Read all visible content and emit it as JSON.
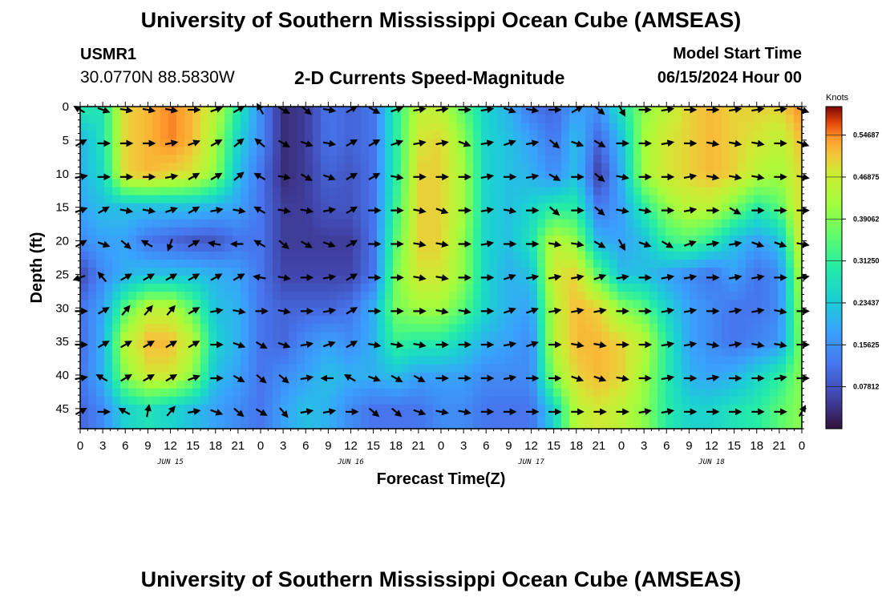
{
  "header": {
    "title": "University of Southern Mississippi Ocean Cube (AMSEAS)",
    "station_id": "USMR1",
    "station_coords": "30.0770N  88.5830W",
    "subtitle": "2-D Currents Speed-Magnitude",
    "start_label": "Model Start Time",
    "start_value": "06/15/2024 Hour 00"
  },
  "footer": {
    "title": "University of Southern Mississippi Ocean Cube (AMSEAS)"
  },
  "chart_data": {
    "type": "heatmap",
    "title": "2-D Currents Speed-Magnitude",
    "xlabel": "Forecast Time(Z)",
    "ylabel": "Depth (ft)",
    "x_hours_range": [
      0,
      96
    ],
    "x_tick_labels": [
      "0",
      "3",
      "6",
      "9",
      "12",
      "15",
      "18",
      "21",
      "0",
      "3",
      "6",
      "9",
      "12",
      "15",
      "18",
      "21",
      "0",
      "3",
      "6",
      "9",
      "12",
      "15",
      "18",
      "21",
      "0",
      "3",
      "6",
      "9",
      "12",
      "15",
      "18",
      "21",
      "0"
    ],
    "date_labels": [
      {
        "label": "JUN 15",
        "hour": 12
      },
      {
        "label": "JUN 16",
        "hour": 36
      },
      {
        "label": "JUN 17",
        "hour": 60
      },
      {
        "label": "JUN 18",
        "hour": 84
      }
    ],
    "y_ticks": [
      0,
      5,
      10,
      15,
      20,
      25,
      30,
      35,
      40,
      45
    ],
    "y_range": [
      0,
      48
    ],
    "colorbar": {
      "unit": "Knots",
      "range": [
        0,
        0.6
      ],
      "tick_values": [
        0.07812,
        0.15625,
        0.23437,
        0.3125,
        0.39062,
        0.46875,
        0.54687
      ],
      "tick_labels": [
        "0.07812",
        "0.15625",
        "0.23437",
        "0.31250",
        "0.39062",
        "0.46875",
        "0.54687"
      ]
    },
    "arrow_hours": [
      0,
      3,
      6,
      9,
      12,
      15,
      18,
      21,
      24,
      27,
      30,
      33,
      36,
      39,
      42,
      45,
      48,
      51,
      54,
      57,
      60,
      63,
      66,
      69,
      72,
      75,
      78,
      81,
      84,
      87,
      90,
      93,
      96
    ],
    "arrow_depths": [
      0,
      5,
      10,
      15,
      20,
      25,
      30,
      35,
      40,
      45
    ],
    "speed_knots": [
      [
        0.3,
        0.28,
        0.5,
        0.52,
        0.55,
        0.52,
        0.45,
        0.3,
        0.15,
        0.03,
        0.05,
        0.12,
        0.1,
        0.12,
        0.3,
        0.45,
        0.45,
        0.35,
        0.25,
        0.2,
        0.12,
        0.1,
        0.18,
        0.16,
        0.28,
        0.4,
        0.45,
        0.5,
        0.52,
        0.5,
        0.5,
        0.5,
        0.55
      ],
      [
        0.2,
        0.28,
        0.5,
        0.52,
        0.55,
        0.52,
        0.42,
        0.25,
        0.15,
        0.03,
        0.05,
        0.12,
        0.1,
        0.12,
        0.3,
        0.48,
        0.5,
        0.4,
        0.25,
        0.22,
        0.18,
        0.12,
        0.22,
        0.1,
        0.22,
        0.42,
        0.48,
        0.5,
        0.52,
        0.5,
        0.48,
        0.45,
        0.52
      ],
      [
        0.2,
        0.26,
        0.5,
        0.52,
        0.5,
        0.48,
        0.4,
        0.22,
        0.12,
        0.03,
        0.05,
        0.1,
        0.08,
        0.12,
        0.3,
        0.5,
        0.5,
        0.42,
        0.25,
        0.22,
        0.2,
        0.15,
        0.22,
        0.05,
        0.2,
        0.42,
        0.48,
        0.5,
        0.52,
        0.5,
        0.45,
        0.42,
        0.5
      ],
      [
        0.18,
        0.22,
        0.22,
        0.22,
        0.22,
        0.22,
        0.2,
        0.18,
        0.12,
        0.05,
        0.05,
        0.08,
        0.08,
        0.12,
        0.32,
        0.5,
        0.5,
        0.42,
        0.25,
        0.22,
        0.25,
        0.3,
        0.3,
        0.12,
        0.18,
        0.3,
        0.4,
        0.45,
        0.45,
        0.38,
        0.3,
        0.35,
        0.5
      ],
      [
        0.15,
        0.18,
        0.18,
        0.12,
        0.1,
        0.08,
        0.08,
        0.12,
        0.12,
        0.05,
        0.05,
        0.05,
        0.05,
        0.12,
        0.35,
        0.5,
        0.5,
        0.4,
        0.25,
        0.22,
        0.28,
        0.45,
        0.4,
        0.2,
        0.18,
        0.22,
        0.32,
        0.35,
        0.3,
        0.22,
        0.18,
        0.22,
        0.5
      ],
      [
        0.06,
        0.15,
        0.2,
        0.22,
        0.22,
        0.22,
        0.2,
        0.18,
        0.12,
        0.06,
        0.06,
        0.06,
        0.06,
        0.12,
        0.38,
        0.48,
        0.48,
        0.4,
        0.25,
        0.2,
        0.22,
        0.48,
        0.5,
        0.35,
        0.22,
        0.22,
        0.18,
        0.15,
        0.12,
        0.18,
        0.12,
        0.15,
        0.45
      ],
      [
        0.12,
        0.18,
        0.35,
        0.45,
        0.45,
        0.35,
        0.22,
        0.2,
        0.12,
        0.1,
        0.1,
        0.1,
        0.12,
        0.2,
        0.38,
        0.42,
        0.42,
        0.35,
        0.25,
        0.2,
        0.18,
        0.45,
        0.52,
        0.5,
        0.4,
        0.35,
        0.25,
        0.18,
        0.15,
        0.12,
        0.12,
        0.15,
        0.42
      ],
      [
        0.1,
        0.2,
        0.45,
        0.52,
        0.52,
        0.45,
        0.25,
        0.2,
        0.12,
        0.1,
        0.15,
        0.18,
        0.15,
        0.2,
        0.32,
        0.3,
        0.3,
        0.25,
        0.2,
        0.18,
        0.15,
        0.45,
        0.52,
        0.52,
        0.5,
        0.45,
        0.3,
        0.18,
        0.15,
        0.12,
        0.14,
        0.16,
        0.4
      ],
      [
        0.12,
        0.2,
        0.4,
        0.48,
        0.48,
        0.4,
        0.22,
        0.18,
        0.12,
        0.15,
        0.18,
        0.22,
        0.2,
        0.2,
        0.22,
        0.18,
        0.18,
        0.18,
        0.15,
        0.15,
        0.15,
        0.4,
        0.5,
        0.52,
        0.5,
        0.42,
        0.3,
        0.2,
        0.18,
        0.2,
        0.25,
        0.3,
        0.4
      ],
      [
        0.1,
        0.15,
        0.25,
        0.28,
        0.25,
        0.22,
        0.18,
        0.15,
        0.12,
        0.18,
        0.22,
        0.2,
        0.15,
        0.12,
        0.12,
        0.12,
        0.15,
        0.15,
        0.12,
        0.12,
        0.12,
        0.25,
        0.45,
        0.48,
        0.45,
        0.4,
        0.3,
        0.25,
        0.25,
        0.28,
        0.3,
        0.35,
        0.4
      ]
    ],
    "direction_deg": [
      [
        300,
        110,
        100,
        100,
        100,
        90,
        70,
        60,
        330,
        120,
        130,
        100,
        60,
        120,
        70,
        80,
        80,
        90,
        80,
        110,
        100,
        90,
        60,
        130,
        150,
        90,
        80,
        90,
        90,
        80,
        80,
        80,
        110
      ],
      [
        60,
        90,
        90,
        90,
        80,
        70,
        60,
        50,
        310,
        120,
        110,
        100,
        60,
        60,
        70,
        80,
        80,
        110,
        80,
        70,
        80,
        130,
        110,
        120,
        90,
        90,
        80,
        90,
        100,
        100,
        100,
        90,
        110
      ],
      [
        80,
        90,
        90,
        90,
        80,
        60,
        60,
        50,
        300,
        100,
        120,
        110,
        60,
        60,
        100,
        90,
        90,
        90,
        80,
        90,
        80,
        120,
        90,
        130,
        100,
        90,
        90,
        80,
        100,
        100,
        100,
        90,
        100
      ],
      [
        70,
        60,
        100,
        100,
        70,
        60,
        80,
        100,
        300,
        100,
        100,
        80,
        60,
        90,
        90,
        100,
        110,
        90,
        80,
        100,
        90,
        130,
        90,
        130,
        100,
        100,
        90,
        80,
        90,
        120,
        90,
        90,
        90
      ],
      [
        60,
        110,
        130,
        300,
        200,
        60,
        280,
        270,
        300,
        130,
        120,
        110,
        60,
        90,
        90,
        100,
        100,
        90,
        80,
        90,
        90,
        100,
        100,
        120,
        150,
        110,
        120,
        70,
        80,
        80,
        110,
        110,
        100
      ],
      [
        250,
        320,
        60,
        60,
        60,
        60,
        60,
        60,
        280,
        100,
        90,
        80,
        60,
        90,
        90,
        100,
        100,
        90,
        90,
        70,
        80,
        80,
        80,
        70,
        80,
        90,
        80,
        80,
        90,
        80,
        80,
        90,
        80
      ],
      [
        90,
        60,
        40,
        40,
        40,
        60,
        80,
        100,
        90,
        100,
        90,
        80,
        60,
        90,
        90,
        90,
        100,
        100,
        90,
        70,
        70,
        80,
        80,
        80,
        90,
        90,
        80,
        80,
        90,
        80,
        80,
        100,
        90
      ],
      [
        90,
        60,
        60,
        60,
        60,
        60,
        90,
        110,
        120,
        110,
        80,
        70,
        60,
        100,
        100,
        100,
        90,
        90,
        90,
        80,
        70,
        90,
        100,
        100,
        90,
        90,
        80,
        80,
        100,
        80,
        100,
        100,
        90
      ],
      [
        80,
        300,
        60,
        60,
        60,
        70,
        90,
        120,
        130,
        130,
        80,
        270,
        300,
        110,
        120,
        120,
        90,
        90,
        90,
        80,
        90,
        90,
        110,
        110,
        100,
        90,
        80,
        90,
        80,
        90,
        90,
        80,
        90
      ],
      [
        60,
        90,
        300,
        10,
        40,
        80,
        110,
        130,
        120,
        140,
        80,
        80,
        90,
        130,
        130,
        110,
        100,
        100,
        90,
        90,
        90,
        90,
        90,
        90,
        90,
        80,
        80,
        90,
        90,
        90,
        90,
        90,
        30
      ]
    ]
  }
}
